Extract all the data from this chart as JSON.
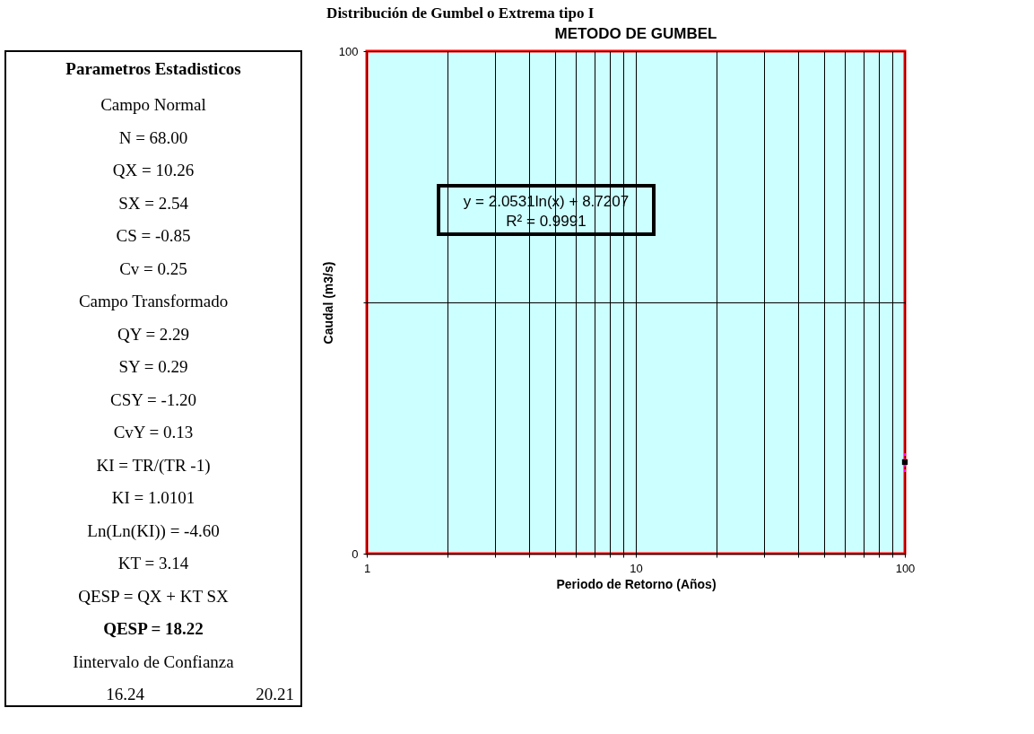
{
  "chart_data": [
    {
      "type": "other",
      "title": "Distribución de Gumbel o Extrema tipo I",
      "subtitle": "Parametros Estadisticos",
      "annotations": [
        "Campo Normal",
        "N =   68.00",
        "QX =   10.26",
        "SX =   2.54",
        "CS =   -0.85",
        "Cv =   0.25",
        "Campo Transformado",
        "QY =   2.29",
        "SY =   0.29",
        "CSY =   -1.20",
        "CvY =   0.13",
        "KI =   TR/(TR -1)",
        "KI =   1.0101",
        "Ln(Ln(KI)) =   -4.60",
        "KT =   3.14",
        "QESP =   QX + KT SX",
        "QESP =   18.22",
        "Iintervalo de Confianza",
        "16.24",
        "20.21"
      ]
    },
    {
      "type": "scatter",
      "title": "METODO DE GUMBEL",
      "xlabel": "Periodo de Retorno (Años)",
      "ylabel": "Caudal (m3/s)",
      "log": "x",
      "grid": true,
      "marker": "square",
      "x": [
        100
      ],
      "series": [
        {
          "color": "#000000",
          "values": [
            18.22
          ],
          "errors": [
            [
              16.24,
              20.21
            ]
          ]
        }
      ],
      "xlim": [
        1,
        100
      ],
      "xticks": [
        1,
        {
          "value": 2,
          "label": null
        },
        {
          "value": 3,
          "label": null
        },
        {
          "value": 4,
          "label": null
        },
        {
          "value": 5,
          "label": null
        },
        {
          "value": 6,
          "label": null
        },
        {
          "value": 7,
          "label": null
        },
        {
          "value": 8,
          "label": null
        },
        {
          "value": 9,
          "label": null
        },
        10,
        {
          "value": 20,
          "label": null
        },
        {
          "value": 30,
          "label": null
        },
        {
          "value": 40,
          "label": null
        },
        {
          "value": 50,
          "label": null
        },
        {
          "value": 60,
          "label": null
        },
        {
          "value": 70,
          "label": null
        },
        {
          "value": 80,
          "label": null
        },
        {
          "value": 90,
          "label": null
        },
        100
      ],
      "ylim": [
        0,
        100
      ],
      "yticks": [
        0,
        {
          "value": 50,
          "label": null
        },
        100
      ],
      "annotations": [
        "y = 2.0531ln(x) + 8.7207",
        "R² = 0.9991"
      ]
    }
  ]
}
